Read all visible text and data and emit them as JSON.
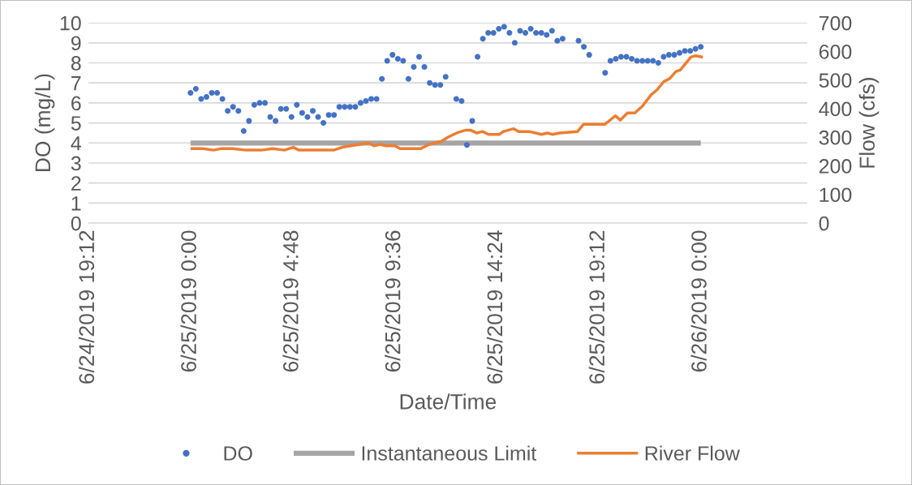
{
  "chart_data": {
    "type": "line",
    "xlabel": "Date/Time",
    "ylabel": "DO (mg/L)",
    "y2label": "Flow (cfs)",
    "xlim": [
      "2019-06-24T19:12",
      "2019-06-26T05:00"
    ],
    "xticks": [
      {
        "value": "2019-06-24T19:12",
        "label": "6/24/2019 19:12"
      },
      {
        "value": "2019-06-25T00:00",
        "label": "6/25/2019 0:00"
      },
      {
        "value": "2019-06-25T04:48",
        "label": "6/25/2019 4:48"
      },
      {
        "value": "2019-06-25T09:36",
        "label": "6/25/2019 9:36"
      },
      {
        "value": "2019-06-25T14:24",
        "label": "6/25/2019 14:24"
      },
      {
        "value": "2019-06-25T19:12",
        "label": "6/25/2019 19:12"
      },
      {
        "value": "2019-06-26T00:00",
        "label": "6/26/2019 0:00"
      }
    ],
    "ylim": [
      0,
      10
    ],
    "yticks": [
      0,
      1,
      2,
      3,
      4,
      5,
      6,
      7,
      8,
      9,
      10
    ],
    "y2lim": [
      0,
      700
    ],
    "y2ticks": [
      0,
      100,
      200,
      300,
      400,
      500,
      600,
      700
    ],
    "grid": "y",
    "legend": "bottom",
    "line_style": "solid",
    "series": [
      {
        "name": "DO",
        "type": "scatter",
        "marker": "circle",
        "color": "#4472c4",
        "x": [
          "2019-06-25T00:00",
          "2019-06-25T00:15",
          "2019-06-25T00:30",
          "2019-06-25T00:45",
          "2019-06-25T01:00",
          "2019-06-25T01:15",
          "2019-06-25T01:30",
          "2019-06-25T01:45",
          "2019-06-25T02:00",
          "2019-06-25T02:15",
          "2019-06-25T02:30",
          "2019-06-25T02:45",
          "2019-06-25T03:00",
          "2019-06-25T03:15",
          "2019-06-25T03:30",
          "2019-06-25T03:45",
          "2019-06-25T04:00",
          "2019-06-25T04:15",
          "2019-06-25T04:30",
          "2019-06-25T04:45",
          "2019-06-25T05:00",
          "2019-06-25T05:15",
          "2019-06-25T05:30",
          "2019-06-25T05:45",
          "2019-06-25T06:00",
          "2019-06-25T06:15",
          "2019-06-25T06:30",
          "2019-06-25T06:45",
          "2019-06-25T07:00",
          "2019-06-25T07:15",
          "2019-06-25T07:30",
          "2019-06-25T07:45",
          "2019-06-25T08:00",
          "2019-06-25T08:15",
          "2019-06-25T08:30",
          "2019-06-25T08:45",
          "2019-06-25T09:00",
          "2019-06-25T09:15",
          "2019-06-25T09:30",
          "2019-06-25T09:45",
          "2019-06-25T10:00",
          "2019-06-25T10:15",
          "2019-06-25T10:30",
          "2019-06-25T10:45",
          "2019-06-25T11:00",
          "2019-06-25T11:15",
          "2019-06-25T11:30",
          "2019-06-25T11:45",
          "2019-06-25T12:00",
          "2019-06-25T12:30",
          "2019-06-25T12:45",
          "2019-06-25T13:00",
          "2019-06-25T13:15",
          "2019-06-25T13:30",
          "2019-06-25T13:45",
          "2019-06-25T14:00",
          "2019-06-25T14:15",
          "2019-06-25T14:30",
          "2019-06-25T14:45",
          "2019-06-25T15:00",
          "2019-06-25T15:15",
          "2019-06-25T15:30",
          "2019-06-25T15:45",
          "2019-06-25T16:00",
          "2019-06-25T16:15",
          "2019-06-25T16:30",
          "2019-06-25T16:45",
          "2019-06-25T17:00",
          "2019-06-25T17:15",
          "2019-06-25T17:30",
          "2019-06-25T18:15",
          "2019-06-25T18:30",
          "2019-06-25T18:45",
          "2019-06-25T19:30",
          "2019-06-25T19:45",
          "2019-06-25T20:00",
          "2019-06-25T20:15",
          "2019-06-25T20:30",
          "2019-06-25T20:45",
          "2019-06-25T21:00",
          "2019-06-25T21:15",
          "2019-06-25T21:30",
          "2019-06-25T21:45",
          "2019-06-25T22:00",
          "2019-06-25T22:15",
          "2019-06-25T22:30",
          "2019-06-25T22:45",
          "2019-06-25T23:00",
          "2019-06-25T23:15",
          "2019-06-25T23:30",
          "2019-06-25T23:45",
          "2019-06-26T00:00"
        ],
        "values": [
          6.5,
          6.7,
          6.2,
          6.3,
          6.5,
          6.5,
          6.2,
          5.6,
          5.8,
          5.6,
          4.6,
          5.1,
          5.9,
          6.0,
          6.0,
          5.3,
          5.1,
          5.7,
          5.7,
          5.3,
          5.9,
          5.5,
          5.3,
          5.6,
          5.3,
          5.0,
          5.4,
          5.4,
          5.8,
          5.8,
          5.8,
          5.8,
          6.0,
          6.1,
          6.2,
          6.2,
          7.2,
          8.1,
          8.4,
          8.2,
          8.1,
          7.2,
          7.8,
          8.3,
          7.8,
          7.0,
          6.9,
          6.9,
          7.3,
          6.2,
          6.1,
          3.9,
          5.1,
          8.3,
          9.2,
          9.5,
          9.5,
          9.7,
          9.8,
          9.5,
          9.0,
          9.6,
          9.5,
          9.7,
          9.5,
          9.5,
          9.4,
          9.6,
          9.1,
          9.2,
          9.1,
          8.8,
          8.4,
          7.5,
          8.1,
          8.2,
          8.3,
          8.3,
          8.2,
          8.1,
          8.1,
          8.1,
          8.1,
          8.0,
          8.3,
          8.4,
          8.4,
          8.5,
          8.6,
          8.6,
          8.7,
          8.8
        ]
      },
      {
        "name": "Instantaneous Limit",
        "color": "#a5a5a5",
        "x": [
          "2019-06-25T00:00",
          "2019-06-26T00:00"
        ],
        "values": [
          4,
          4
        ]
      },
      {
        "name": "River Flow",
        "color": "#ed7d31",
        "axis": "y2",
        "x": [
          "2019-06-25T00:00",
          "2019-06-25T00:36",
          "2019-06-25T01:05",
          "2019-06-25T01:25",
          "2019-06-25T01:58",
          "2019-06-25T02:38",
          "2019-06-25T03:20",
          "2019-06-25T03:52",
          "2019-06-25T04:25",
          "2019-06-25T04:50",
          "2019-06-25T05:06",
          "2019-06-25T06:44",
          "2019-06-25T07:08",
          "2019-06-25T07:33",
          "2019-06-25T07:58",
          "2019-06-25T08:22",
          "2019-06-25T08:38",
          "2019-06-25T08:55",
          "2019-06-25T09:11",
          "2019-06-25T09:36",
          "2019-06-25T09:52",
          "2019-06-25T10:49",
          "2019-06-25T11:14",
          "2019-06-25T11:47",
          "2019-06-25T12:06",
          "2019-06-25T12:31",
          "2019-06-25T12:57",
          "2019-06-25T13:10",
          "2019-06-25T13:27",
          "2019-06-25T13:44",
          "2019-06-25T14:01",
          "2019-06-25T14:31",
          "2019-06-25T14:43",
          "2019-06-25T15:12",
          "2019-06-25T15:26",
          "2019-06-25T15:56",
          "2019-06-25T16:30",
          "2019-06-25T16:47",
          "2019-06-25T17:00",
          "2019-06-25T17:22",
          "2019-06-25T18:12",
          "2019-06-25T18:29",
          "2019-06-25T19:29",
          "2019-06-25T19:59",
          "2019-06-25T20:13",
          "2019-06-25T20:33",
          "2019-06-25T20:54",
          "2019-06-25T21:16",
          "2019-06-25T21:41",
          "2019-06-25T21:56",
          "2019-06-25T22:16",
          "2019-06-25T22:32",
          "2019-06-25T22:50",
          "2019-06-25T23:02",
          "2019-06-25T23:32",
          "2019-06-25T23:45",
          "2019-06-26T00:06"
        ],
        "values": [
          260,
          260,
          255,
          260,
          260,
          255,
          255,
          260,
          255,
          265,
          255,
          255,
          265,
          270,
          275,
          280,
          270,
          275,
          270,
          270,
          260,
          260,
          275,
          285,
          300,
          315,
          325,
          325,
          315,
          320,
          310,
          310,
          320,
          330,
          320,
          320,
          310,
          315,
          310,
          315,
          320,
          345,
          345,
          375,
          360,
          385,
          385,
          410,
          450,
          465,
          495,
          505,
          530,
          535,
          580,
          585,
          580
        ]
      }
    ]
  }
}
